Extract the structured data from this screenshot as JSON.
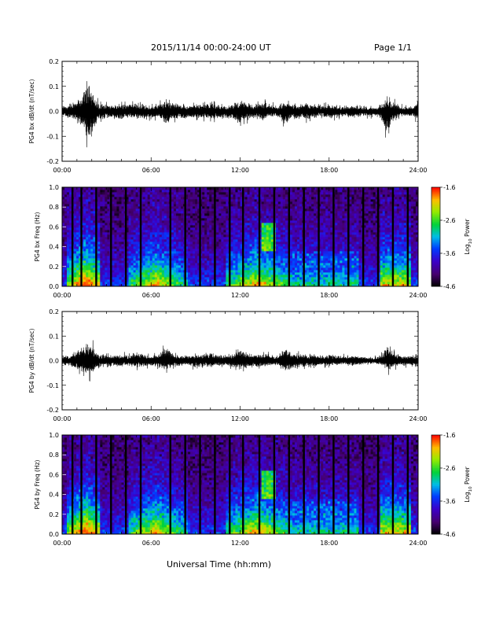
{
  "header": {
    "title": "2015/11/14  00:00-24:00 UT",
    "page": "Page 1/1"
  },
  "x_axis_title": "Universal Time (hh:mm)",
  "colorbar": {
    "label": "Log",
    "label_subscript": "10",
    "label_suffix": " Power",
    "ticks": [
      "-1.6",
      "-2.6",
      "-3.6",
      "-4.6"
    ]
  },
  "chart_data": [
    {
      "type": "line",
      "ylabel": "PG4 bx dB/dt (nT/sec)",
      "x_ticks": [
        "00:00",
        "06:00",
        "12:00",
        "18:00",
        "24:00"
      ],
      "y_ticks": [
        "0.2",
        "0.1",
        "0.0",
        "-0.1",
        "-0.2"
      ],
      "xlim": [
        0,
        24
      ],
      "ylim": [
        -0.2,
        0.2
      ],
      "series": [
        {
          "values": [
            [
              0.0,
              -0.03,
              0.03
            ],
            [
              0.5,
              -0.04,
              0.04
            ],
            [
              1.0,
              -0.06,
              0.06
            ],
            [
              1.5,
              -0.12,
              0.12
            ],
            [
              1.8,
              -0.18,
              0.16
            ],
            [
              2.0,
              -0.14,
              0.13
            ],
            [
              2.2,
              -0.09,
              0.08
            ],
            [
              2.5,
              -0.05,
              0.05
            ],
            [
              3.0,
              -0.04,
              0.04
            ],
            [
              3.5,
              -0.04,
              0.04
            ],
            [
              4.0,
              -0.05,
              0.04
            ],
            [
              4.5,
              -0.04,
              0.04
            ],
            [
              5.0,
              -0.04,
              0.05
            ],
            [
              5.5,
              -0.05,
              0.04
            ],
            [
              6.0,
              -0.04,
              0.03
            ],
            [
              6.5,
              -0.04,
              0.04
            ],
            [
              7.0,
              -0.08,
              0.06
            ],
            [
              7.5,
              -0.05,
              0.05
            ],
            [
              8.0,
              -0.04,
              0.04
            ],
            [
              8.5,
              -0.04,
              0.03
            ],
            [
              9.0,
              -0.05,
              0.04
            ],
            [
              9.5,
              -0.04,
              0.04
            ],
            [
              10.0,
              -0.05,
              0.05
            ],
            [
              10.5,
              -0.04,
              0.04
            ],
            [
              11.0,
              -0.04,
              0.03
            ],
            [
              11.5,
              -0.05,
              0.04
            ],
            [
              12.0,
              -0.07,
              0.06
            ],
            [
              12.5,
              -0.05,
              0.05
            ],
            [
              13.0,
              -0.04,
              0.04
            ],
            [
              13.5,
              -0.05,
              0.05
            ],
            [
              14.0,
              -0.03,
              0.05
            ],
            [
              14.5,
              -0.03,
              0.03
            ],
            [
              15.0,
              -0.08,
              0.06
            ],
            [
              15.5,
              -0.05,
              0.04
            ],
            [
              16.0,
              -0.04,
              0.04
            ],
            [
              16.5,
              -0.05,
              0.05
            ],
            [
              17.0,
              -0.04,
              0.04
            ],
            [
              17.5,
              -0.03,
              0.04
            ],
            [
              18.0,
              -0.04,
              0.04
            ],
            [
              18.5,
              -0.04,
              0.03
            ],
            [
              19.0,
              -0.03,
              0.03
            ],
            [
              19.5,
              -0.04,
              0.03
            ],
            [
              20.0,
              -0.03,
              0.03
            ],
            [
              20.5,
              -0.03,
              0.03
            ],
            [
              21.0,
              -0.03,
              0.02
            ],
            [
              21.5,
              -0.04,
              0.04
            ],
            [
              22.0,
              -0.17,
              0.08
            ],
            [
              22.3,
              -0.06,
              0.06
            ],
            [
              22.8,
              -0.03,
              0.03
            ],
            [
              23.5,
              -0.03,
              0.03
            ],
            [
              24.0,
              -0.05,
              0.05
            ]
          ]
        }
      ]
    },
    {
      "type": "heatmap",
      "ylabel": "PG4 bx Freq (Hz)",
      "x_ticks": [
        "00:00",
        "06:00",
        "12:00",
        "18:00",
        "24:00"
      ],
      "y_ticks": [
        "1.0",
        "0.8",
        "0.6",
        "0.4",
        "0.2",
        "0.0"
      ],
      "xlim": [
        0,
        24
      ],
      "ylim": [
        0,
        1.0
      ],
      "zlim": [
        -4.6,
        -1.6
      ],
      "zlabel": "Log10 Power",
      "gap_times": [
        0.7,
        1.3,
        2.3,
        3.3,
        4.3,
        5.3,
        7.3,
        8.3,
        9.3,
        10.3,
        11.3,
        12.2,
        13.3,
        14.3,
        15.3,
        16.3,
        17.3,
        18.3,
        19.3,
        20.3,
        21.3,
        22.3,
        23.3
      ]
    },
    {
      "type": "line",
      "ylabel": "PG4 by dB/dt (nT/sec)",
      "x_ticks": [
        "00:00",
        "06:00",
        "12:00",
        "18:00",
        "24:00"
      ],
      "y_ticks": [
        "0.2",
        "0.1",
        "0.0",
        "-0.1",
        "-0.2"
      ],
      "xlim": [
        0,
        24
      ],
      "ylim": [
        -0.2,
        0.2
      ],
      "series": [
        {
          "values": [
            [
              0.0,
              -0.03,
              0.03
            ],
            [
              0.5,
              -0.03,
              0.03
            ],
            [
              1.0,
              -0.05,
              0.06
            ],
            [
              1.5,
              -0.08,
              0.1
            ],
            [
              1.8,
              -0.1,
              0.12
            ],
            [
              2.0,
              -0.08,
              0.1
            ],
            [
              2.2,
              -0.06,
              0.07
            ],
            [
              2.5,
              -0.04,
              0.04
            ],
            [
              3.0,
              -0.03,
              0.03
            ],
            [
              3.5,
              -0.03,
              0.03
            ],
            [
              4.0,
              -0.04,
              0.04
            ],
            [
              4.5,
              -0.03,
              0.03
            ],
            [
              5.0,
              -0.04,
              0.05
            ],
            [
              5.5,
              -0.04,
              0.04
            ],
            [
              6.0,
              -0.03,
              0.03
            ],
            [
              6.5,
              -0.04,
              0.04
            ],
            [
              7.0,
              -0.06,
              0.08
            ],
            [
              7.5,
              -0.04,
              0.04
            ],
            [
              8.0,
              -0.03,
              0.03
            ],
            [
              8.5,
              -0.03,
              0.03
            ],
            [
              9.0,
              -0.04,
              0.04
            ],
            [
              9.5,
              -0.04,
              0.04
            ],
            [
              10.0,
              -0.04,
              0.05
            ],
            [
              10.5,
              -0.03,
              0.03
            ],
            [
              11.0,
              -0.03,
              0.03
            ],
            [
              11.5,
              -0.04,
              0.04
            ],
            [
              12.0,
              -0.05,
              0.06
            ],
            [
              12.5,
              -0.04,
              0.05
            ],
            [
              13.0,
              -0.04,
              0.04
            ],
            [
              13.5,
              -0.04,
              0.04
            ],
            [
              14.0,
              -0.03,
              0.04
            ],
            [
              14.5,
              -0.03,
              0.03
            ],
            [
              15.0,
              -0.06,
              0.07
            ],
            [
              15.5,
              -0.05,
              0.05
            ],
            [
              16.0,
              -0.04,
              0.04
            ],
            [
              16.5,
              -0.04,
              0.04
            ],
            [
              17.0,
              -0.04,
              0.04
            ],
            [
              17.5,
              -0.03,
              0.03
            ],
            [
              18.0,
              -0.03,
              0.04
            ],
            [
              18.5,
              -0.03,
              0.03
            ],
            [
              19.0,
              -0.02,
              0.03
            ],
            [
              19.5,
              -0.03,
              0.03
            ],
            [
              20.0,
              -0.03,
              0.03
            ],
            [
              20.5,
              -0.02,
              0.02
            ],
            [
              21.0,
              -0.02,
              0.02
            ],
            [
              21.5,
              -0.03,
              0.03
            ],
            [
              22.0,
              -0.06,
              0.1
            ],
            [
              22.3,
              -0.05,
              0.05
            ],
            [
              22.8,
              -0.03,
              0.03
            ],
            [
              23.5,
              -0.03,
              0.03
            ],
            [
              24.0,
              -0.05,
              0.04
            ]
          ]
        }
      ]
    },
    {
      "type": "heatmap",
      "ylabel": "PG4 by Freq (Hz)",
      "x_ticks": [
        "00:00",
        "06:00",
        "12:00",
        "18:00",
        "24:00"
      ],
      "y_ticks": [
        "1.0",
        "0.8",
        "0.6",
        "0.4",
        "0.2",
        "0.0"
      ],
      "xlim": [
        0,
        24
      ],
      "ylim": [
        0,
        1.0
      ],
      "zlim": [
        -4.6,
        -1.6
      ],
      "zlabel": "Log10 Power",
      "gap_times": [
        0.7,
        1.3,
        2.3,
        3.3,
        4.3,
        5.3,
        7.3,
        8.3,
        9.3,
        10.3,
        11.3,
        12.2,
        13.3,
        14.3,
        15.3,
        16.3,
        17.3,
        18.3,
        19.3,
        20.3,
        21.3,
        22.3,
        23.3
      ]
    }
  ]
}
